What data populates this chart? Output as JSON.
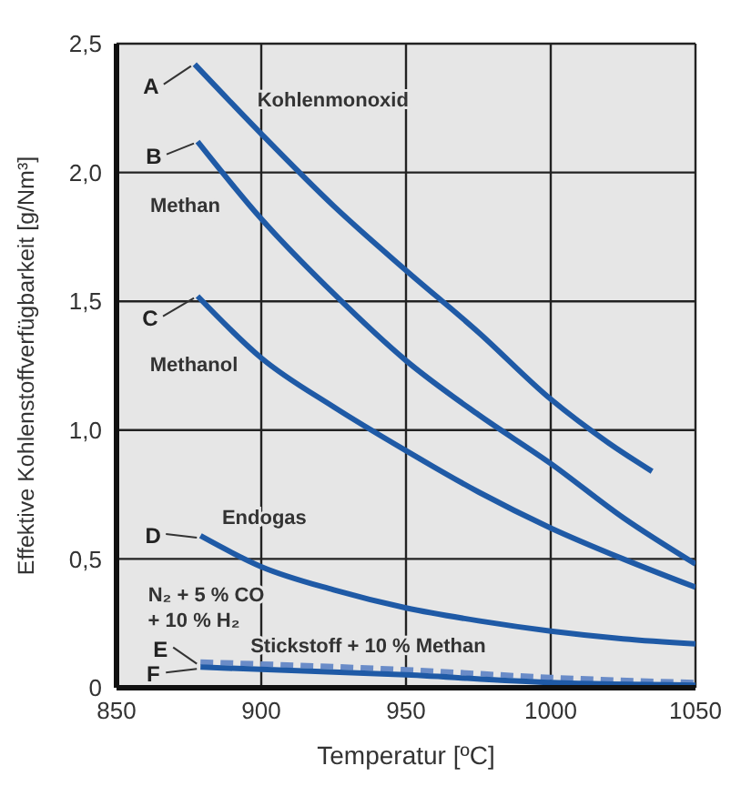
{
  "chart_data": {
    "type": "line",
    "xlabel": "Temperatur [ºC]",
    "ylabel": "Effektive Kohlenstoffverfügbarkeit [g/Nm³]",
    "xlim": [
      850,
      1050
    ],
    "xticks": [
      850,
      900,
      950,
      1000,
      1050
    ],
    "ylim": [
      0,
      2.5
    ],
    "yticks": [
      {
        "value": 0,
        "label": "0"
      },
      {
        "value": 0.5,
        "label": "0,5"
      },
      {
        "value": 1,
        "label": "1,0"
      },
      {
        "value": 1.5,
        "label": "1,5"
      },
      {
        "value": 2,
        "label": "2,0"
      },
      {
        "value": 2.5,
        "label": "2,5"
      }
    ],
    "grid": true,
    "marker": "none",
    "series": [
      {
        "name": "A",
        "color": "#1f5aa6",
        "x": [
          877,
          900,
          925,
          950,
          975,
          1000,
          1020,
          1035
        ],
        "values": [
          2.42,
          2.15,
          1.87,
          1.62,
          1.38,
          1.12,
          0.95,
          0.84
        ]
      },
      {
        "name": "B",
        "color": "#1f5aa6",
        "x": [
          878,
          900,
          925,
          950,
          975,
          1000,
          1025,
          1050
        ],
        "values": [
          2.12,
          1.82,
          1.53,
          1.27,
          1.06,
          0.87,
          0.66,
          0.48
        ]
      },
      {
        "name": "C",
        "color": "#1f5aa6",
        "x": [
          878,
          900,
          925,
          950,
          975,
          1000,
          1025,
          1050
        ],
        "values": [
          1.52,
          1.28,
          1.09,
          0.92,
          0.76,
          0.62,
          0.5,
          0.39
        ]
      },
      {
        "name": "D",
        "color": "#1f5aa6",
        "x": [
          879,
          900,
          925,
          950,
          975,
          1000,
          1025,
          1050
        ],
        "values": [
          0.59,
          0.47,
          0.38,
          0.31,
          0.26,
          0.22,
          0.19,
          0.17
        ]
      },
      {
        "name": "E",
        "color": "#6a8cc8",
        "line_style": "dashed",
        "x": [
          879,
          950,
          1000,
          1050
        ],
        "values": [
          0.1,
          0.07,
          0.04,
          0.02
        ]
      },
      {
        "name": "F",
        "color": "#1f5aa6",
        "x": [
          879,
          950,
          1000,
          1050
        ],
        "values": [
          0.08,
          0.05,
          0.02,
          0.01
        ]
      }
    ],
    "annotations": [
      "Kohlenmonoxid",
      "Methan",
      "Methanol",
      "Endogas",
      "N₂ + 5 % CO",
      "+ 10 % H₂",
      "Stickstoff + 10 % Methan"
    ]
  }
}
